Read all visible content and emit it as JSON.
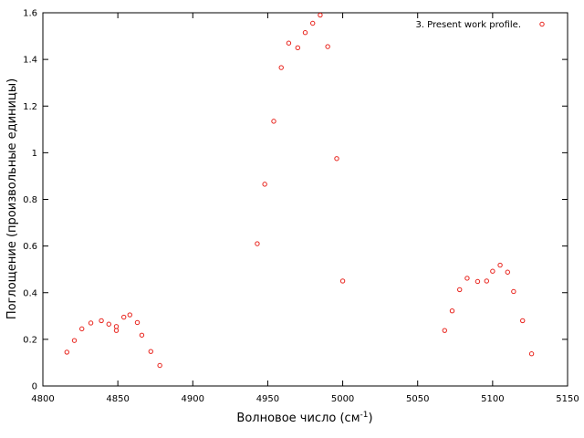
{
  "chart_data": {
    "type": "scatter",
    "title": "",
    "xlabel": "Волновое число (см",
    "xlabel_sup": "-1",
    "xlabel_suffix": ")",
    "ylabel": "Поглощение (произвольные единицы)",
    "xlim": [
      4800,
      5150
    ],
    "ylim": [
      0,
      1.6
    ],
    "xticks": [
      4800,
      4850,
      4900,
      4950,
      5000,
      5050,
      5100,
      5150
    ],
    "yticks": [
      0,
      0.2,
      0.4,
      0.6,
      0.8,
      1,
      1.2,
      1.4,
      1.6
    ],
    "grid": false,
    "legend_position": "top-right",
    "marker": "open-circle",
    "color": "#e8231c",
    "series": [
      {
        "name": "3. Present work profile.",
        "points": [
          [
            4816,
            0.145
          ],
          [
            4821,
            0.195
          ],
          [
            4826,
            0.245
          ],
          [
            4832,
            0.27
          ],
          [
            4839,
            0.28
          ],
          [
            4844,
            0.265
          ],
          [
            4849,
            0.255
          ],
          [
            4849,
            0.238
          ],
          [
            4854,
            0.295
          ],
          [
            4858,
            0.305
          ],
          [
            4863,
            0.272
          ],
          [
            4866,
            0.218
          ],
          [
            4872,
            0.148
          ],
          [
            4878,
            0.088
          ],
          [
            4943,
            0.61
          ],
          [
            4948,
            0.865
          ],
          [
            4954,
            1.135
          ],
          [
            4959,
            1.365
          ],
          [
            4964,
            1.47
          ],
          [
            4970,
            1.45
          ],
          [
            4975,
            1.515
          ],
          [
            4980,
            1.555
          ],
          [
            4985,
            1.59
          ],
          [
            4990,
            1.455
          ],
          [
            4996,
            0.975
          ],
          [
            5000,
            0.45
          ],
          [
            5068,
            0.238
          ],
          [
            5073,
            0.322
          ],
          [
            5078,
            0.413
          ],
          [
            5083,
            0.462
          ],
          [
            5090,
            0.448
          ],
          [
            5096,
            0.45
          ],
          [
            5100,
            0.492
          ],
          [
            5105,
            0.518
          ],
          [
            5110,
            0.488
          ],
          [
            5114,
            0.405
          ],
          [
            5120,
            0.28
          ],
          [
            5126,
            0.138
          ]
        ]
      }
    ]
  }
}
